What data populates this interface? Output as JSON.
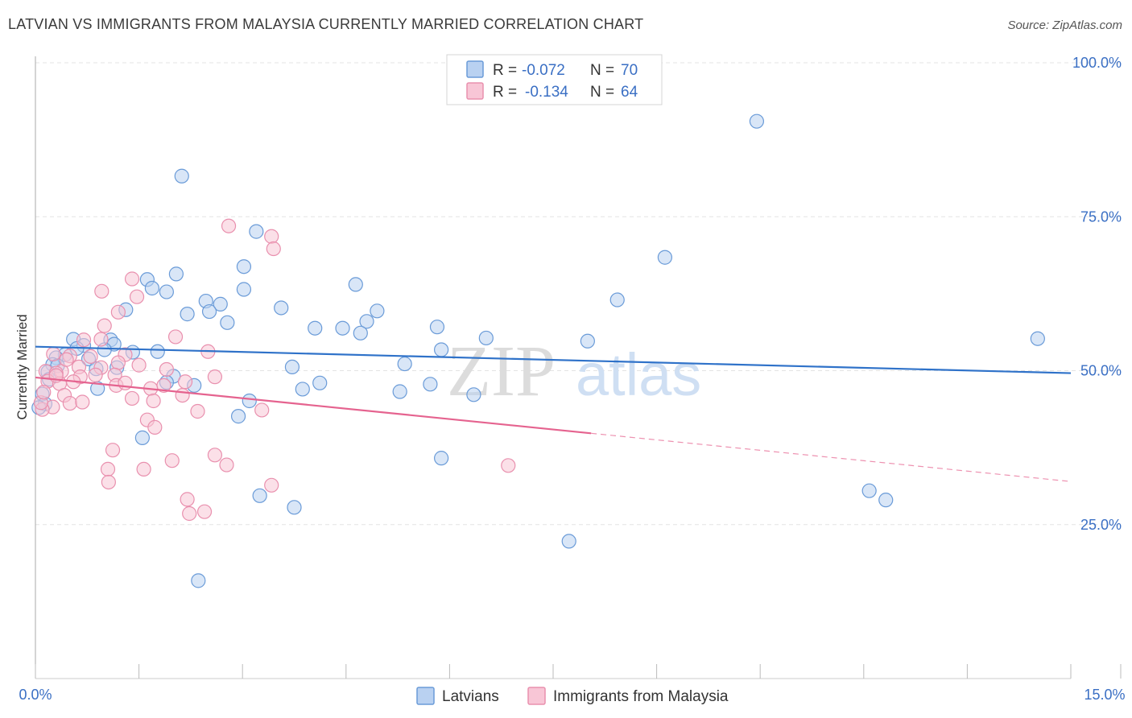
{
  "header": {
    "title": "LATVIAN VS IMMIGRANTS FROM MALAYSIA CURRENTLY MARRIED CORRELATION CHART",
    "source": "Source: ZipAtlas.com"
  },
  "watermark": {
    "part1": "ZIP",
    "part2": "atlas"
  },
  "colors": {
    "blue_fill": "#b9d1f1",
    "blue_stroke": "#6a9bd8",
    "blue_line": "#2f72c9",
    "pink_fill": "#f8c6d6",
    "pink_stroke": "#e990ae",
    "pink_line": "#e5638f",
    "grid": "#e3e3e3",
    "tick_text": "#3a6fc4"
  },
  "stats": {
    "r_label": "R =",
    "n_label": "N =",
    "series": [
      {
        "r": "-0.072",
        "n": "70"
      },
      {
        "r": "-0.134",
        "n": "64"
      }
    ]
  },
  "chart_data": {
    "type": "scatter",
    "title": "LATVIAN VS IMMIGRANTS FROM MALAYSIA CURRENTLY MARRIED CORRELATION CHART",
    "xlabel": "",
    "ylabel": "Currently Married",
    "xlim": [
      0,
      15
    ],
    "ylim": [
      0,
      100
    ],
    "x_ticks": [
      0,
      1.5,
      3,
      4.5,
      6,
      7.5,
      9,
      10.5,
      12,
      13.5,
      15
    ],
    "x_tick_labels": {
      "first": "0.0%",
      "last": "15.0%"
    },
    "y_ticks": [
      25,
      50,
      75,
      100
    ],
    "y_tick_labels": [
      "25.0%",
      "50.0%",
      "75.0%",
      "100.0%"
    ],
    "grid": true,
    "legend_position": "bottom-center",
    "series": [
      {
        "name": "Latvians",
        "r": -0.072,
        "n": 70,
        "trend": {
          "x0": 0,
          "y0": 53.9,
          "x1": 15,
          "y1": 49.6,
          "solid_until": 15
        },
        "points": [
          [
            10.45,
            90.5
          ],
          [
            2.12,
            81.6
          ],
          [
            3.2,
            72.6
          ],
          [
            9.12,
            68.4
          ],
          [
            3.02,
            66.9
          ],
          [
            2.04,
            65.7
          ],
          [
            1.62,
            64.8
          ],
          [
            4.64,
            64.0
          ],
          [
            1.69,
            63.4
          ],
          [
            3.02,
            63.2
          ],
          [
            1.9,
            62.8
          ],
          [
            8.43,
            61.5
          ],
          [
            2.47,
            61.3
          ],
          [
            2.68,
            60.8
          ],
          [
            1.31,
            59.9
          ],
          [
            3.56,
            60.2
          ],
          [
            4.95,
            59.7
          ],
          [
            2.2,
            59.2
          ],
          [
            2.52,
            59.6
          ],
          [
            4.8,
            58.0
          ],
          [
            2.78,
            57.8
          ],
          [
            4.05,
            56.9
          ],
          [
            4.45,
            56.9
          ],
          [
            5.82,
            57.1
          ],
          [
            4.71,
            56.1
          ],
          [
            14.52,
            55.2
          ],
          [
            8.0,
            54.8
          ],
          [
            0.55,
            55.1
          ],
          [
            1.09,
            55.0
          ],
          [
            6.53,
            55.3
          ],
          [
            1.14,
            54.3
          ],
          [
            0.7,
            54.1
          ],
          [
            0.6,
            53.6
          ],
          [
            1.0,
            53.4
          ],
          [
            5.88,
            53.4
          ],
          [
            1.41,
            53.0
          ],
          [
            1.77,
            53.1
          ],
          [
            0.43,
            52.6
          ],
          [
            0.3,
            52.1
          ],
          [
            0.77,
            51.9
          ],
          [
            5.35,
            51.1
          ],
          [
            0.25,
            51.0
          ],
          [
            1.18,
            50.5
          ],
          [
            3.72,
            50.6
          ],
          [
            0.88,
            50.3
          ],
          [
            0.18,
            49.8
          ],
          [
            2.0,
            49.1
          ],
          [
            1.9,
            48.1
          ],
          [
            4.12,
            48.0
          ],
          [
            5.72,
            47.8
          ],
          [
            2.3,
            47.6
          ],
          [
            3.87,
            47.0
          ],
          [
            0.9,
            47.1
          ],
          [
            5.28,
            46.6
          ],
          [
            0.1,
            46.2
          ],
          [
            6.35,
            46.1
          ],
          [
            3.1,
            45.1
          ],
          [
            0.14,
            44.6
          ],
          [
            2.94,
            42.6
          ],
          [
            1.55,
            39.1
          ],
          [
            5.88,
            35.8
          ],
          [
            12.08,
            30.5
          ],
          [
            12.32,
            29.0
          ],
          [
            3.25,
            29.7
          ],
          [
            3.75,
            27.8
          ],
          [
            7.73,
            22.3
          ],
          [
            2.36,
            15.9
          ],
          [
            0.05,
            44.0
          ],
          [
            0.2,
            48.6
          ],
          [
            0.32,
            50.8
          ]
        ]
      },
      {
        "name": "Immigrants from Malaysia",
        "r": -0.134,
        "n": 64,
        "trend": {
          "x0": 0,
          "y0": 48.9,
          "x1": 15,
          "y1": 32.0,
          "solid_until": 8.05
        },
        "points": [
          [
            2.8,
            73.5
          ],
          [
            3.42,
            71.8
          ],
          [
            3.45,
            69.8
          ],
          [
            1.4,
            64.9
          ],
          [
            1.47,
            62.0
          ],
          [
            0.96,
            62.9
          ],
          [
            1.2,
            59.5
          ],
          [
            1.0,
            57.3
          ],
          [
            2.03,
            55.5
          ],
          [
            0.7,
            55.0
          ],
          [
            0.95,
            55.1
          ],
          [
            2.5,
            53.1
          ],
          [
            0.26,
            52.7
          ],
          [
            0.5,
            52.4
          ],
          [
            0.8,
            52.3
          ],
          [
            1.3,
            52.6
          ],
          [
            1.2,
            51.3
          ],
          [
            1.5,
            50.9
          ],
          [
            0.63,
            50.6
          ],
          [
            0.95,
            50.5
          ],
          [
            0.38,
            49.9
          ],
          [
            0.15,
            49.9
          ],
          [
            0.3,
            49.6
          ],
          [
            0.87,
            49.3
          ],
          [
            0.65,
            49.0
          ],
          [
            1.15,
            49.3
          ],
          [
            0.55,
            48.2
          ],
          [
            0.18,
            48.3
          ],
          [
            0.35,
            47.9
          ],
          [
            2.17,
            48.2
          ],
          [
            1.86,
            47.6
          ],
          [
            1.17,
            47.6
          ],
          [
            1.67,
            47.1
          ],
          [
            0.42,
            46.0
          ],
          [
            1.4,
            45.5
          ],
          [
            1.71,
            45.1
          ],
          [
            2.13,
            46.0
          ],
          [
            0.5,
            44.7
          ],
          [
            0.68,
            44.9
          ],
          [
            0.25,
            44.1
          ],
          [
            0.1,
            43.7
          ],
          [
            2.35,
            43.4
          ],
          [
            3.28,
            43.6
          ],
          [
            1.62,
            42.0
          ],
          [
            1.73,
            40.8
          ],
          [
            1.12,
            37.1
          ],
          [
            2.6,
            36.3
          ],
          [
            1.98,
            35.4
          ],
          [
            2.77,
            34.7
          ],
          [
            1.05,
            34.0
          ],
          [
            1.57,
            34.0
          ],
          [
            6.85,
            34.6
          ],
          [
            1.06,
            31.9
          ],
          [
            3.42,
            31.4
          ],
          [
            2.2,
            29.1
          ],
          [
            2.23,
            26.8
          ],
          [
            2.45,
            27.1
          ],
          [
            0.08,
            44.8
          ],
          [
            0.12,
            46.5
          ],
          [
            0.45,
            51.8
          ],
          [
            0.3,
            49.2
          ],
          [
            1.9,
            50.2
          ],
          [
            2.6,
            49.0
          ],
          [
            1.3,
            48.0
          ]
        ]
      }
    ]
  },
  "legend": {
    "items": [
      "Latvians",
      "Immigrants from Malaysia"
    ]
  }
}
